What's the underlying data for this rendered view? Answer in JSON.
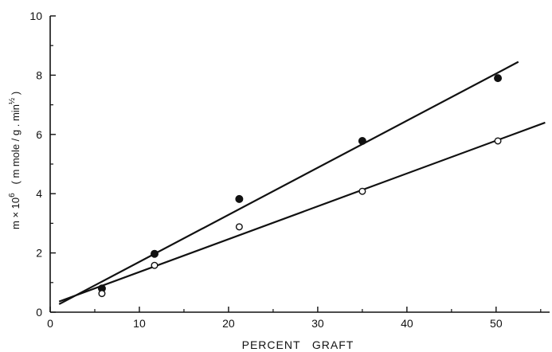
{
  "chart_data": {
    "type": "scatter",
    "xlabel": "PERCENT   GRAFT",
    "ylabel": {
      "symbol": "m × 10",
      "exponent": "6",
      "units": "( m mole / g . min",
      "units_exponent": "½",
      "units_close": " )"
    },
    "xlim": [
      0,
      56
    ],
    "ylim": [
      0,
      10
    ],
    "x_ticks": [
      0,
      10,
      20,
      30,
      40,
      50
    ],
    "y_ticks": [
      0,
      2,
      4,
      6,
      8,
      10
    ],
    "grid": false,
    "series": [
      {
        "marker": "filled-circle",
        "points": [
          [
            5.8,
            0.8
          ],
          [
            11.7,
            1.97
          ],
          [
            21.2,
            3.82
          ],
          [
            35,
            5.78
          ],
          [
            50.2,
            7.9
          ]
        ],
        "fit_line": [
          [
            1,
            0.27
          ],
          [
            52.5,
            8.45
          ]
        ]
      },
      {
        "marker": "open-circle",
        "points": [
          [
            5.8,
            0.63
          ],
          [
            11.7,
            1.58
          ],
          [
            21.2,
            2.88
          ],
          [
            35,
            4.08
          ],
          [
            50.2,
            5.78
          ]
        ],
        "fit_line": [
          [
            1,
            0.36
          ],
          [
            55.5,
            6.4
          ]
        ]
      }
    ]
  }
}
